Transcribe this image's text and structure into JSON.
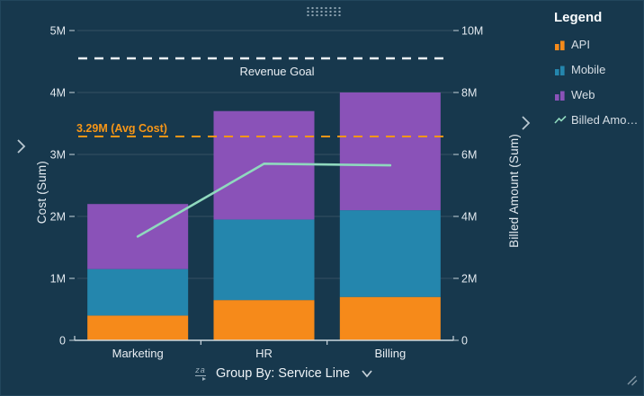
{
  "widget": {
    "background_color": "#17384d",
    "accent_text_color": "#e9eef3"
  },
  "legend": {
    "title": "Legend",
    "items": [
      {
        "label": "API",
        "color": "#f68a1a",
        "icon": "bars-icon"
      },
      {
        "label": "Mobile",
        "color": "#2486ad",
        "icon": "bars-icon"
      },
      {
        "label": "Web",
        "color": "#8a52b8",
        "icon": "bars-icon"
      },
      {
        "label": "Billed Amo…",
        "color": "#8fd9be",
        "icon": "line-icon"
      }
    ]
  },
  "left_axis": {
    "title": "Cost (Sum)"
  },
  "right_axis": {
    "title": "Billed Amount (Sum)"
  },
  "controls": {
    "group_by_label": "Group By: Service Line",
    "sort_icon_text": "za"
  },
  "reference_lines": [
    {
      "label": "Revenue Goal",
      "value": 4550000,
      "axis": "left",
      "color": "#e9eef3",
      "style": "dashed",
      "label_position": "center-below"
    },
    {
      "label": "3.29M (Avg Cost)",
      "value": 3290000,
      "axis": "left",
      "color": "#f79617",
      "style": "dashed",
      "label_position": "left-above"
    }
  ],
  "chart_data": [
    {
      "type": "bar",
      "stacked": true,
      "categories": [
        "Marketing",
        "HR",
        "Billing"
      ],
      "series": [
        {
          "name": "API",
          "color": "#f68a1a",
          "values": [
            400000,
            650000,
            700000
          ]
        },
        {
          "name": "Mobile",
          "color": "#2486ad",
          "values": [
            750000,
            1300000,
            1400000
          ]
        },
        {
          "name": "Web",
          "color": "#8a52b8",
          "values": [
            1050000,
            1750000,
            1900000
          ]
        }
      ],
      "axis": "left",
      "ylabel": "Cost (Sum)",
      "ylim": [
        0,
        5000000
      ],
      "yticks": [
        "0",
        "1M",
        "2M",
        "3M",
        "4M",
        "5M"
      ],
      "grid": true,
      "legend_position": "right"
    },
    {
      "type": "line",
      "name": "Billed Amount",
      "color": "#8fd9be",
      "categories": [
        "Marketing",
        "HR",
        "Billing"
      ],
      "values": [
        3350000,
        5700000,
        5650000
      ],
      "axis": "right",
      "ylabel": "Billed Amount (Sum)",
      "ylim": [
        0,
        10000000
      ],
      "yticks": [
        "0",
        "2M",
        "4M",
        "6M",
        "8M",
        "10M"
      ]
    }
  ]
}
